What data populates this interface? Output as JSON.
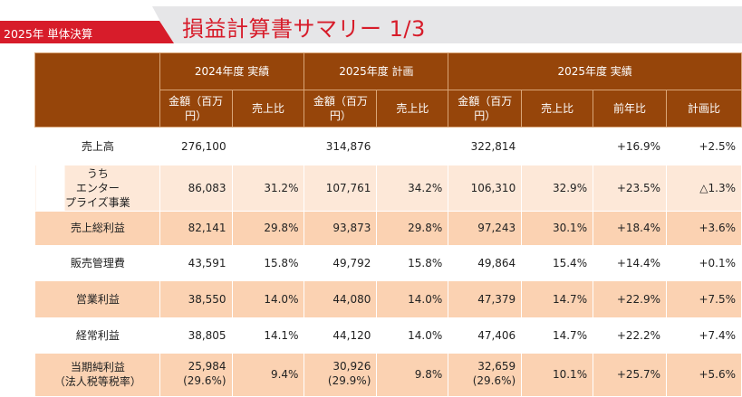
{
  "header": {
    "section_label": "2025年 単体決算",
    "title": "損益計算書サマリー 1/3"
  },
  "table": {
    "groups": [
      "2024年度 実績",
      "2025年度 計画",
      "2025年度 実績"
    ],
    "subheaders": [
      "金額\n（百万円）",
      "売上比",
      "金額\n（百万円）",
      "売上比",
      "金額\n（百万円）",
      "売上比",
      "前年比",
      "計画比"
    ],
    "rows": [
      {
        "style": "white",
        "height": 42,
        "label": "売上高",
        "cells": [
          "276,100",
          "",
          "314,876",
          "",
          "322,814",
          "",
          "+16.9%",
          "+2.5%"
        ]
      },
      {
        "style": "light",
        "height": 48,
        "label": "うち\nエンター\nプライズ事業",
        "cells": [
          "86,083",
          "31.2%",
          "107,761",
          "34.2%",
          "106,310",
          "32.9%",
          "+23.5%",
          "△1.3%"
        ]
      },
      {
        "style": "peach",
        "height": 38,
        "label": "売上総利益",
        "cells": [
          "82,141",
          "29.8%",
          "93,873",
          "29.8%",
          "97,243",
          "30.1%",
          "+18.4%",
          "+3.6%"
        ]
      },
      {
        "style": "white",
        "height": 40,
        "label": "販売管理費",
        "cells": [
          "43,591",
          "15.8%",
          "49,792",
          "15.8%",
          "49,864",
          "15.4%",
          "+14.4%",
          "+0.1%"
        ]
      },
      {
        "style": "peach",
        "height": 40,
        "label": "営業利益",
        "cells": [
          "38,550",
          "14.0%",
          "44,080",
          "14.0%",
          "47,379",
          "14.7%",
          "+22.9%",
          "+7.5%"
        ]
      },
      {
        "style": "white",
        "height": 40,
        "label": "経常利益",
        "cells": [
          "38,805",
          "14.1%",
          "44,120",
          "14.0%",
          "47,406",
          "14.7%",
          "+22.2%",
          "+7.4%"
        ]
      },
      {
        "style": "peach",
        "height": 47,
        "label": "当期純利益\n（法人税等税率）",
        "cells": [
          "25,984\n(29.6%)",
          "9.4%",
          "30,926\n(29.9%)",
          "9.8%",
          "32,659\n(29.6%)",
          "10.1%",
          "+25.7%",
          "+5.6%"
        ]
      }
    ]
  },
  "colors": {
    "accent_red": "#d71c2a",
    "header_brown": "#96450a",
    "peach": "#fbd2b2",
    "light_peach": "#fde8d8"
  }
}
